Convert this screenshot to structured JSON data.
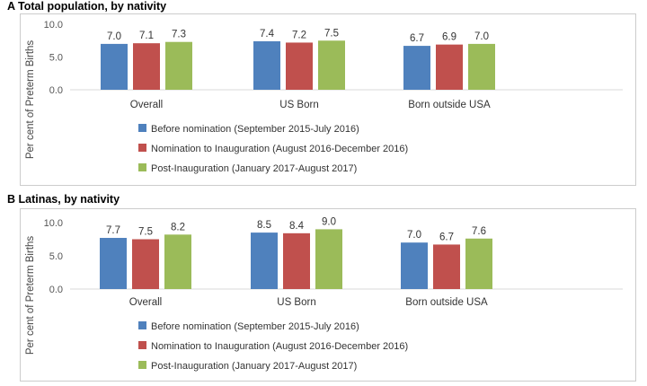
{
  "chart_data": [
    {
      "type": "bar",
      "title": "A  Total population, by nativity",
      "ylabel": "Per cent of Preterm Births",
      "ylim": [
        0,
        10
      ],
      "yticks": [
        "0.0",
        "5.0",
        "10.0"
      ],
      "categories": [
        "Overall",
        "US Born",
        "Born outside USA"
      ],
      "series": [
        {
          "name": "Before nomination (September 2015-July 2016)",
          "color": "#4F81BD",
          "values": [
            7.0,
            7.4,
            6.7
          ],
          "labels": [
            "7.0",
            "7.4",
            "6.7"
          ]
        },
        {
          "name": "Nomination to Inauguration (August 2016-December 2016)",
          "color": "#C0504D",
          "values": [
            7.1,
            7.2,
            6.9
          ],
          "labels": [
            "7.1",
            "7.2",
            "6.9"
          ]
        },
        {
          "name": "Post-Inauguration (January 2017-August 2017)",
          "color": "#9BBB59",
          "values": [
            7.3,
            7.5,
            7.0
          ],
          "labels": [
            "7.3",
            "7.5",
            "7.0"
          ]
        }
      ]
    },
    {
      "type": "bar",
      "title": "B  Latinas, by nativity",
      "ylabel": "Per cent of Preterm Births",
      "ylim": [
        0,
        10
      ],
      "yticks": [
        "0.0",
        "5.0",
        "10.0"
      ],
      "categories": [
        "Overall",
        "US Born",
        "Born outside USA"
      ],
      "series": [
        {
          "name": "Before nomination (September 2015-July 2016)",
          "color": "#4F81BD",
          "values": [
            7.7,
            8.5,
            7.0
          ],
          "labels": [
            "7.7",
            "8.5",
            "7.0"
          ]
        },
        {
          "name": "Nomination to Inauguration (August 2016-December 2016)",
          "color": "#C0504D",
          "values": [
            7.5,
            8.4,
            6.7
          ],
          "labels": [
            "7.5",
            "8.4",
            "6.7"
          ]
        },
        {
          "name": "Post-Inauguration (January 2017-August 2017)",
          "color": "#9BBB59",
          "values": [
            8.2,
            9.0,
            7.6
          ],
          "labels": [
            "8.2",
            "9.0",
            "7.6"
          ]
        }
      ]
    }
  ]
}
